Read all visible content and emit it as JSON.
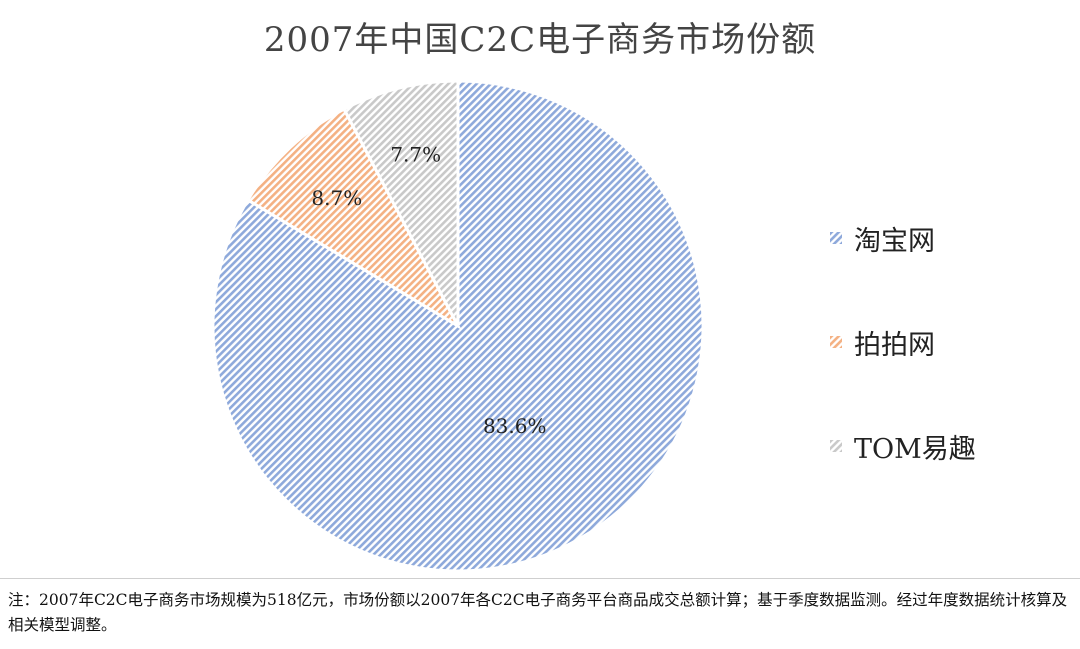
{
  "colors": {
    "taobao": "#8EA9DB",
    "paipai": "#F4B183",
    "tom": "#C9C9C9",
    "title": "#444444"
  },
  "chart_data": {
    "type": "pie",
    "title": "2007年中国C2C电子商务市场份额",
    "categories": [
      "淘宝网",
      "拍拍网",
      "TOM易趣"
    ],
    "values": [
      83.6,
      8.7,
      7.7
    ],
    "data_labels": [
      "83.6%",
      "8.7%",
      "7.7%"
    ],
    "legend_position": "right",
    "start_angle": "12 o'clock, clockwise",
    "fill_style": "diagonal hatch"
  },
  "footnote": "注：2007年C2C电子商务市场规模为518亿元，市场份额以2007年各C2C电子商务平台商品成交总额计算；基于季度数据监测。经过年度数据统计核算及相关模型调整。"
}
